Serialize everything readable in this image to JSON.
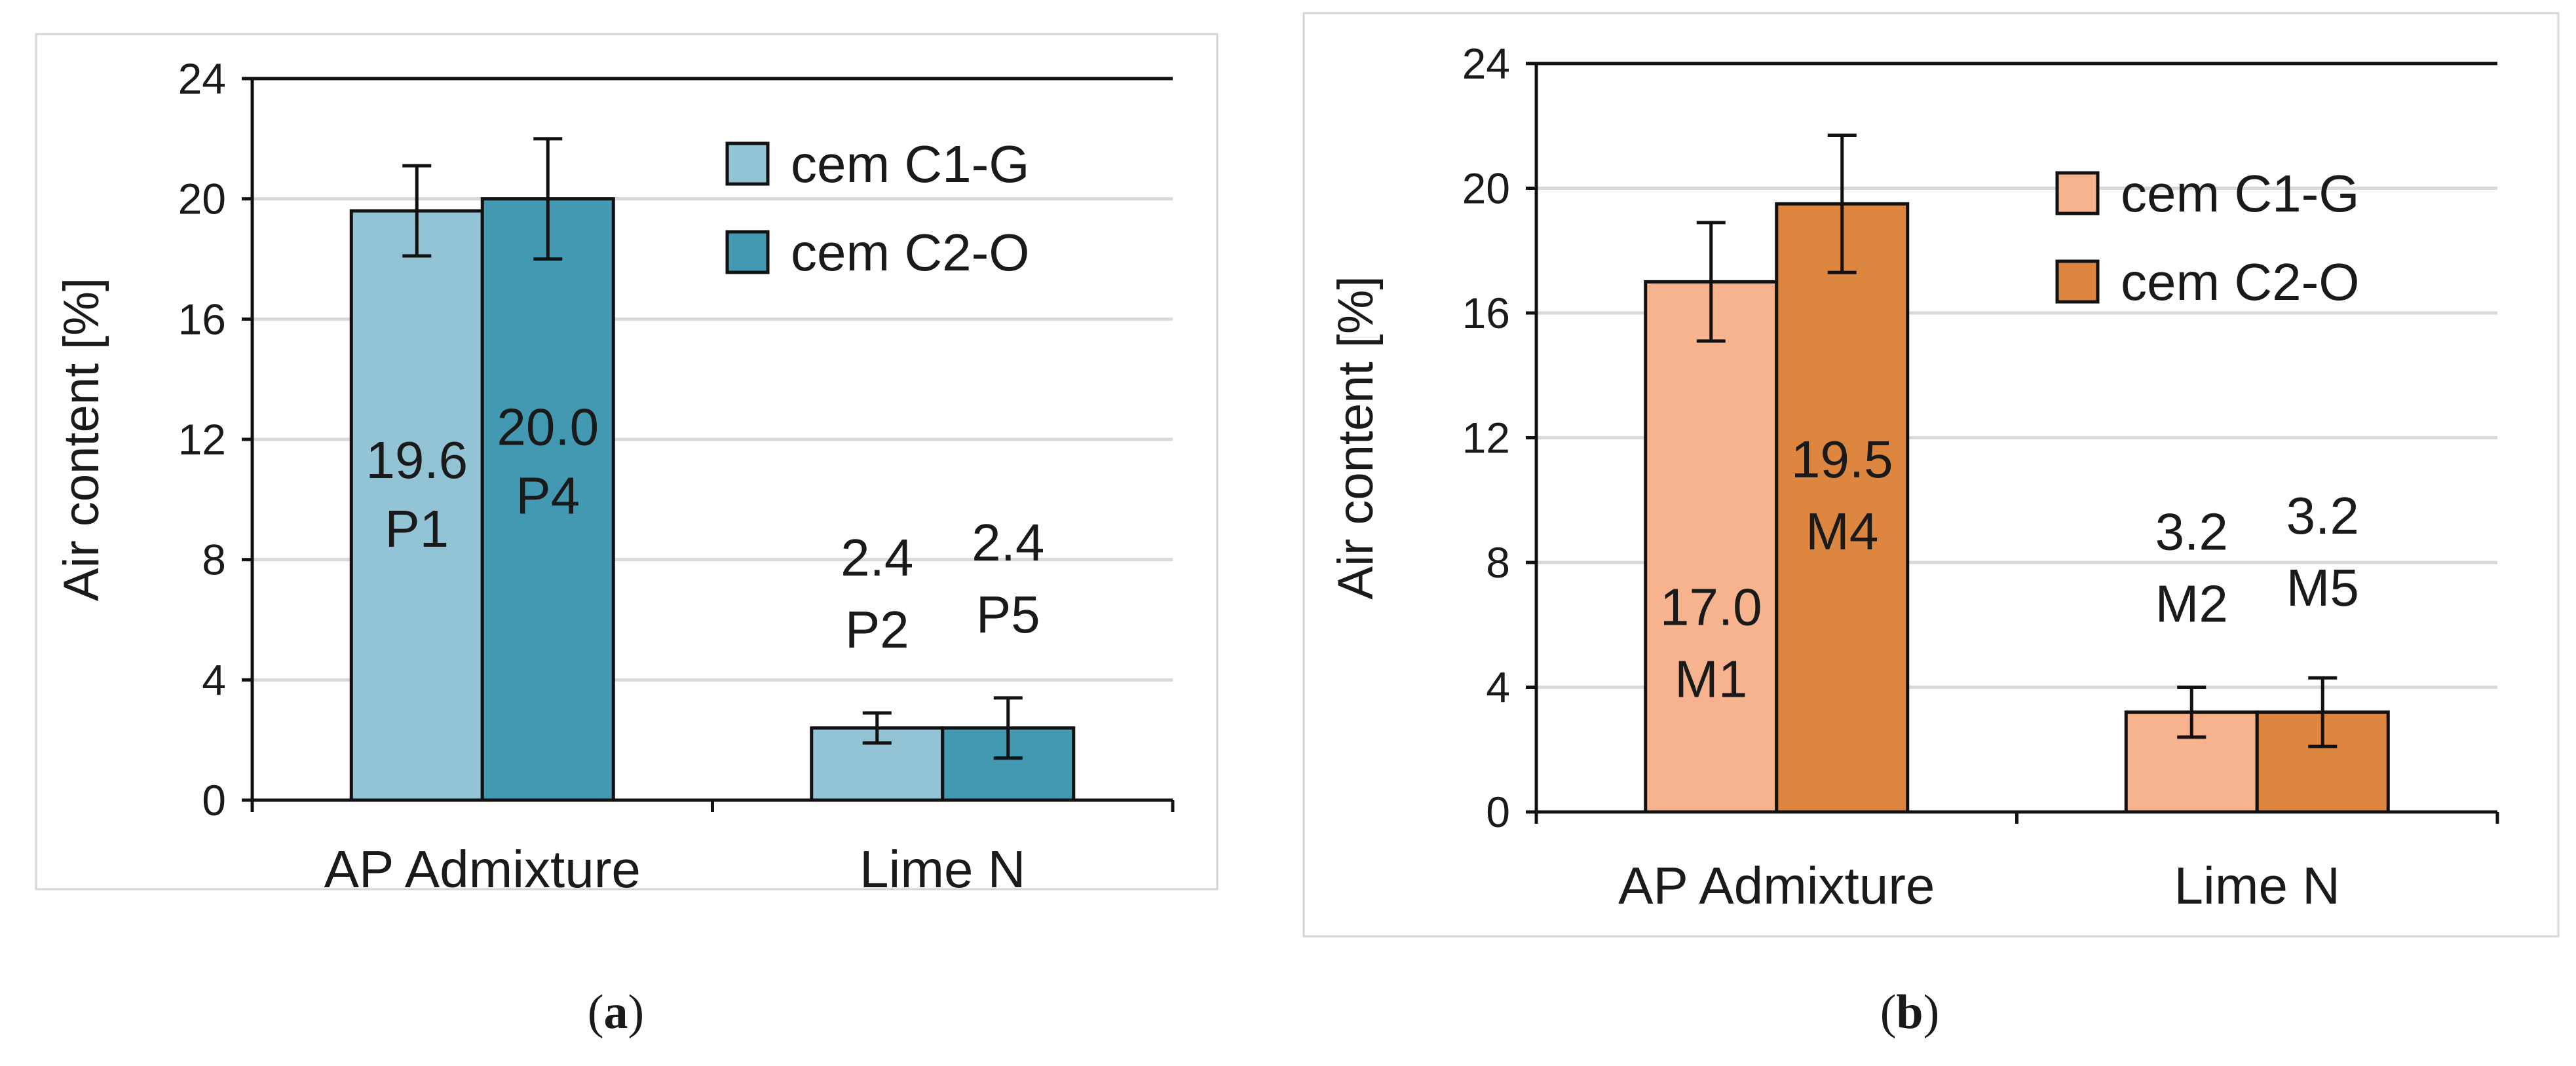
{
  "chart_data": [
    {
      "type": "bar",
      "panel": "a",
      "caption": {
        "open": "(",
        "letter": "a",
        "close": ")"
      },
      "ylabel": "Air content  [%]",
      "ylim": [
        0,
        24
      ],
      "yticks": [
        "0",
        "4",
        "8",
        "12",
        "16",
        "20",
        "24"
      ],
      "categories": [
        "AP Admixture",
        "Lime N"
      ],
      "series": [
        {
          "name": "cem C1-G",
          "color": "#92C4D6",
          "values": [
            19.6,
            2.4
          ],
          "errors": [
            1.5,
            0.5
          ],
          "value_labels": [
            "19.6",
            "2.4"
          ],
          "ids": [
            "P1",
            "P2"
          ]
        },
        {
          "name": "cem C2-O",
          "color": "#4399B1",
          "values": [
            20.0,
            2.4
          ],
          "errors": [
            2.0,
            1.0
          ],
          "value_labels": [
            "20.0",
            "2.4"
          ],
          "ids": [
            "P4",
            "P5"
          ]
        }
      ],
      "legend_position": "top-right",
      "grid": true
    },
    {
      "type": "bar",
      "panel": "b",
      "caption": {
        "open": "(",
        "letter": "b",
        "close": ")"
      },
      "ylabel": "Air content  [%]",
      "ylim": [
        0,
        24
      ],
      "yticks": [
        "0",
        "4",
        "8",
        "12",
        "16",
        "20",
        "24"
      ],
      "categories": [
        "AP Admixture",
        "Lime N"
      ],
      "series": [
        {
          "name": "cem C1-G",
          "color": "#F6B38E",
          "values": [
            17.0,
            3.2
          ],
          "errors": [
            1.9,
            0.8
          ],
          "value_labels": [
            "17.0",
            "3.2"
          ],
          "ids": [
            "M1",
            "M2"
          ]
        },
        {
          "name": "cem C2-O",
          "color": "#DD8640",
          "values": [
            19.5,
            3.2
          ],
          "errors": [
            2.2,
            1.1
          ],
          "value_labels": [
            "19.5",
            "3.2"
          ],
          "ids": [
            "M4",
            "M5"
          ]
        }
      ],
      "legend_position": "top-right",
      "grid": true
    }
  ]
}
